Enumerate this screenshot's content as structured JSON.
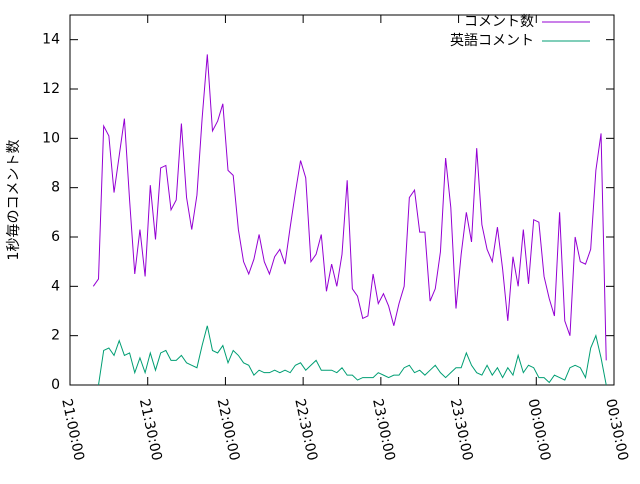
{
  "chart_data": {
    "type": "line",
    "ylabel": "1秒毎のコメント数",
    "x": [
      "21:09:00",
      "21:11:00",
      "21:13:00",
      "21:15:00",
      "21:17:00",
      "21:19:00",
      "21:21:00",
      "21:23:00",
      "21:25:00",
      "21:27:00",
      "21:29:00",
      "21:31:00",
      "21:33:00",
      "21:35:00",
      "21:37:00",
      "21:39:00",
      "21:41:00",
      "21:43:00",
      "21:45:00",
      "21:47:00",
      "21:49:00",
      "21:51:00",
      "21:53:00",
      "21:55:00",
      "21:57:00",
      "21:59:00",
      "22:01:00",
      "22:03:00",
      "22:05:00",
      "22:07:00",
      "22:09:00",
      "22:11:00",
      "22:13:00",
      "22:15:00",
      "22:17:00",
      "22:19:00",
      "22:21:00",
      "22:23:00",
      "22:25:00",
      "22:27:00",
      "22:29:00",
      "22:31:00",
      "22:33:00",
      "22:35:00",
      "22:37:00",
      "22:39:00",
      "22:41:00",
      "22:43:00",
      "22:45:00",
      "22:47:00",
      "22:49:00",
      "22:51:00",
      "22:53:00",
      "22:55:00",
      "22:57:00",
      "22:59:00",
      "23:01:00",
      "23:03:00",
      "23:05:00",
      "23:07:00",
      "23:09:00",
      "23:11:00",
      "23:13:00",
      "23:15:00",
      "23:17:00",
      "23:19:00",
      "23:21:00",
      "23:23:00",
      "23:25:00",
      "23:27:00",
      "23:29:00",
      "23:31:00",
      "23:33:00",
      "23:35:00",
      "23:37:00",
      "23:39:00",
      "23:41:00",
      "23:43:00",
      "23:45:00",
      "23:47:00",
      "23:49:00",
      "23:51:00",
      "23:53:00",
      "23:55:00",
      "23:57:00",
      "23:59:00",
      "00:01:00",
      "00:03:00",
      "00:05:00",
      "00:07:00",
      "00:09:00",
      "00:11:00",
      "00:13:00",
      "00:15:00",
      "00:17:00",
      "00:19:00",
      "00:21:00",
      "00:23:00",
      "00:25:00",
      "00:27:00"
    ],
    "series": [
      {
        "name": "コメント数",
        "color": "#9400d3",
        "values": [
          4.0,
          4.3,
          10.5,
          10.1,
          7.8,
          9.3,
          10.8,
          7.5,
          4.5,
          6.3,
          4.4,
          8.1,
          5.9,
          8.8,
          8.9,
          7.1,
          7.5,
          10.6,
          7.6,
          6.3,
          7.7,
          10.8,
          13.4,
          10.3,
          10.7,
          11.4,
          8.7,
          8.5,
          6.3,
          5.0,
          4.5,
          5.1,
          6.1,
          5.0,
          4.5,
          5.2,
          5.5,
          4.9,
          6.4,
          7.8,
          9.1,
          8.4,
          5.0,
          5.3,
          6.1,
          3.8,
          4.9,
          4.0,
          5.3,
          8.3,
          3.9,
          3.6,
          2.7,
          2.8,
          4.5,
          3.3,
          3.7,
          3.2,
          2.4,
          3.3,
          4.0,
          7.6,
          7.9,
          6.2,
          6.2,
          3.4,
          3.9,
          5.4,
          9.2,
          7.2,
          3.1,
          5.3,
          7.0,
          5.8,
          9.6,
          6.5,
          5.5,
          5.0,
          6.4,
          4.7,
          2.6,
          5.2,
          4.0,
          6.3,
          4.1,
          6.7,
          6.6,
          4.4,
          3.5,
          2.8,
          7.0,
          2.6,
          2.0,
          6.0,
          5.0,
          4.9,
          5.5,
          8.7,
          10.2,
          1.0
        ]
      },
      {
        "name": "英語コメント",
        "color": "#009e73",
        "values": [
          null,
          0.0,
          1.4,
          1.5,
          1.2,
          1.8,
          1.2,
          1.3,
          0.5,
          1.1,
          0.5,
          1.3,
          0.6,
          1.3,
          1.4,
          1.0,
          1.0,
          1.2,
          0.9,
          0.8,
          0.7,
          1.6,
          2.4,
          1.4,
          1.3,
          1.6,
          0.9,
          1.4,
          1.2,
          0.9,
          0.8,
          0.4,
          0.6,
          0.5,
          0.5,
          0.6,
          0.5,
          0.6,
          0.5,
          0.8,
          0.9,
          0.6,
          0.8,
          1.0,
          0.6,
          0.6,
          0.6,
          0.5,
          0.7,
          0.4,
          0.4,
          0.2,
          0.3,
          0.3,
          0.3,
          0.5,
          0.4,
          0.3,
          0.4,
          0.4,
          0.7,
          0.8,
          0.5,
          0.6,
          0.4,
          0.6,
          0.8,
          0.5,
          0.3,
          0.5,
          0.7,
          0.7,
          1.3,
          0.8,
          0.5,
          0.4,
          0.8,
          0.4,
          0.7,
          0.3,
          0.7,
          0.4,
          1.2,
          0.5,
          0.8,
          0.7,
          0.3,
          0.3,
          0.1,
          0.4,
          0.3,
          0.2,
          0.7,
          0.8,
          0.7,
          0.3,
          1.5,
          2.0,
          1.1,
          0.0
        ]
      }
    ],
    "xlim": [
      "21:00:00",
      "00:30:00"
    ],
    "xticks": [
      "21:00:00",
      "21:30:00",
      "22:00:00",
      "22:30:00",
      "23:00:00",
      "23:30:00",
      "00:00:00",
      "00:30:00"
    ],
    "ylim": [
      0,
      15
    ],
    "yticks": [
      0,
      2,
      4,
      6,
      8,
      10,
      12,
      14
    ],
    "legend": "upper right"
  }
}
